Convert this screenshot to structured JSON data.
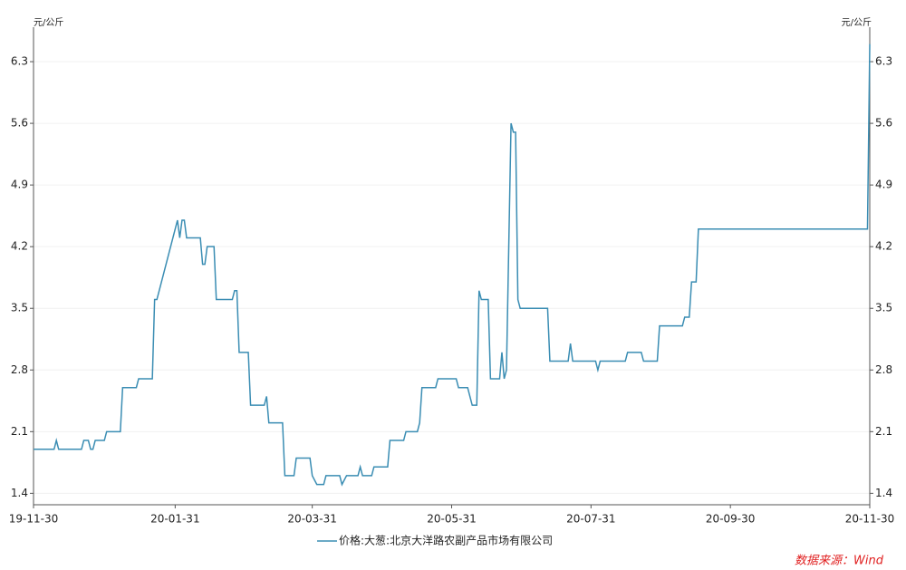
{
  "chart_data": {
    "type": "line",
    "y_unit": "元/公斤",
    "source": "数据来源：Wind",
    "xlim": [
      "2019-11-30",
      "2020-11-30"
    ],
    "xticks": [
      {
        "value": "2019-11-30",
        "label": "19-11-30"
      },
      {
        "value": "2020-01-31",
        "label": "20-01-31"
      },
      {
        "value": "2020-03-31",
        "label": "20-03-31"
      },
      {
        "value": "2020-05-31",
        "label": "20-05-31"
      },
      {
        "value": "2020-07-31",
        "label": "20-07-31"
      },
      {
        "value": "2020-09-30",
        "label": "20-09-30"
      },
      {
        "value": "2020-11-30",
        "label": "20-11-30"
      }
    ],
    "ylim": [
      1.27,
      6.64
    ],
    "yticks": [
      1.4,
      2.1,
      2.8,
      3.5,
      4.2,
      4.9,
      5.6,
      6.3
    ],
    "grid": true,
    "x": [
      "2019-11-30",
      "2019-12-09",
      "2019-12-10",
      "2019-12-11",
      "2019-12-21",
      "2019-12-22",
      "2019-12-24",
      "2019-12-25",
      "2019-12-26",
      "2019-12-27",
      "2019-12-31",
      "2020-01-01",
      "2020-01-07",
      "2020-01-08",
      "2020-01-14",
      "2020-01-15",
      "2020-01-21",
      "2020-01-22",
      "2020-01-23",
      "2020-02-01",
      "2020-02-02",
      "2020-02-03",
      "2020-02-04",
      "2020-02-05",
      "2020-02-11",
      "2020-02-12",
      "2020-02-13",
      "2020-02-14",
      "2020-02-17",
      "2020-02-18",
      "2020-02-25",
      "2020-02-26",
      "2020-02-27",
      "2020-02-28",
      "2020-03-03",
      "2020-03-04",
      "2020-03-10",
      "2020-03-11",
      "2020-03-12",
      "2020-03-18",
      "2020-03-19",
      "2020-03-23",
      "2020-03-24",
      "2020-03-30",
      "2020-03-31",
      "2020-04-02",
      "2020-04-05",
      "2020-04-06",
      "2020-04-12",
      "2020-04-13",
      "2020-04-15",
      "2020-04-20",
      "2020-04-21",
      "2020-04-22",
      "2020-04-26",
      "2020-04-27",
      "2020-05-03",
      "2020-05-04",
      "2020-05-10",
      "2020-05-11",
      "2020-05-16",
      "2020-05-17",
      "2020-05-18",
      "2020-05-24",
      "2020-05-25",
      "2020-06-02",
      "2020-06-03",
      "2020-06-07",
      "2020-06-08",
      "2020-06-09",
      "2020-06-11",
      "2020-06-12",
      "2020-06-13",
      "2020-06-16",
      "2020-06-17",
      "2020-06-21",
      "2020-06-22",
      "2020-06-23",
      "2020-06-24",
      "2020-06-26",
      "2020-06-27",
      "2020-06-28",
      "2020-06-29",
      "2020-06-30",
      "2020-07-12",
      "2020-07-13",
      "2020-07-21",
      "2020-07-22",
      "2020-07-23",
      "2020-08-02",
      "2020-08-03",
      "2020-08-04",
      "2020-08-15",
      "2020-08-16",
      "2020-08-22",
      "2020-08-23",
      "2020-08-29",
      "2020-08-30",
      "2020-09-09",
      "2020-09-10",
      "2020-09-12",
      "2020-09-13",
      "2020-09-15",
      "2020-09-16",
      "2020-11-29",
      "2020-11-30"
    ],
    "series": [
      {
        "name": "价格:大葱:北京大洋路农副产品市场有限公司",
        "color": "#3a8db3",
        "values": [
          1.9,
          1.9,
          2.0,
          1.9,
          1.9,
          2.0,
          2.0,
          1.9,
          1.9,
          2.0,
          2.0,
          2.1,
          2.1,
          2.6,
          2.6,
          2.7,
          2.7,
          3.6,
          3.6,
          4.5,
          4.3,
          4.5,
          4.5,
          4.3,
          4.3,
          4.0,
          4.0,
          4.2,
          4.2,
          3.6,
          3.6,
          3.7,
          3.7,
          3.0,
          3.0,
          2.4,
          2.4,
          2.5,
          2.2,
          2.2,
          1.6,
          1.6,
          1.8,
          1.8,
          1.6,
          1.5,
          1.5,
          1.6,
          1.6,
          1.5,
          1.6,
          1.6,
          1.7,
          1.6,
          1.6,
          1.7,
          1.7,
          2.0,
          2.0,
          2.1,
          2.1,
          2.2,
          2.6,
          2.6,
          2.7,
          2.7,
          2.6,
          2.6,
          2.5,
          2.4,
          2.4,
          3.7,
          3.6,
          3.6,
          2.7,
          2.7,
          3.0,
          2.7,
          2.8,
          5.6,
          5.5,
          5.5,
          3.6,
          3.5,
          3.5,
          2.9,
          2.9,
          3.1,
          2.9,
          2.9,
          2.8,
          2.9,
          2.9,
          3.0,
          3.0,
          2.9,
          2.9,
          3.3,
          3.3,
          3.4,
          3.4,
          3.8,
          3.8,
          4.4,
          4.4,
          6.5
        ]
      }
    ]
  }
}
